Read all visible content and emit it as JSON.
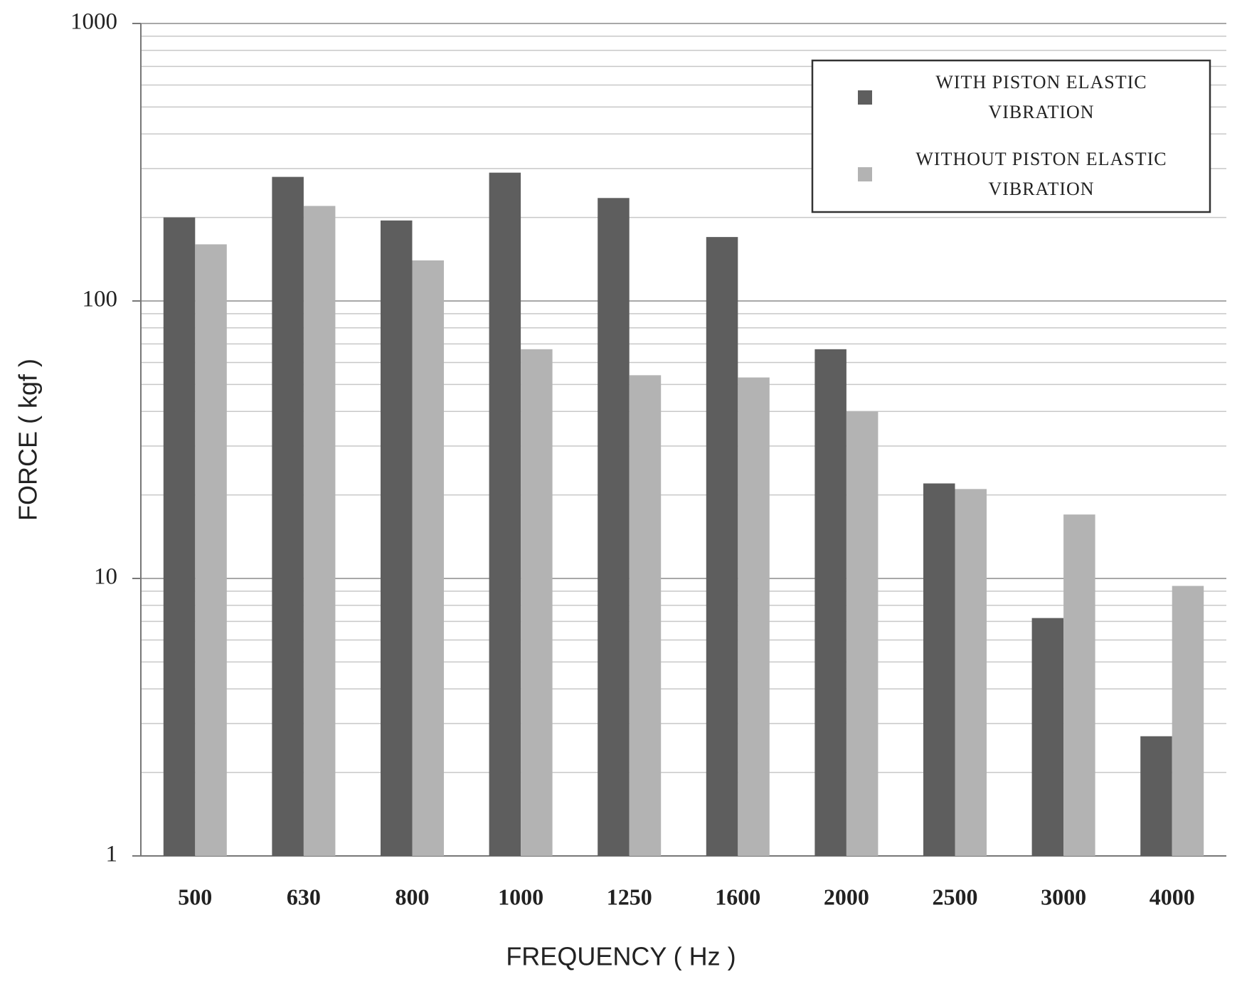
{
  "chart_data": {
    "type": "bar",
    "x_label": "FREQUENCY ( Hz )",
    "y_label": "FORCE ( kgf )",
    "categories": [
      "500",
      "630",
      "800",
      "1000",
      "1250",
      "1600",
      "2000",
      "2500",
      "3000",
      "4000"
    ],
    "series": [
      {
        "name": "WITH PISTON ELASTIC VIBRATION",
        "color": "#5e5e5e",
        "values": [
          200,
          280,
          195,
          290,
          235,
          170,
          67,
          22,
          7.2,
          2.7
        ]
      },
      {
        "name": "WITHOUT PISTON ELASTIC VIBRATION",
        "color": "#b3b3b3",
        "values": [
          160,
          220,
          140,
          67,
          54,
          53,
          40,
          21,
          17,
          9.4
        ]
      }
    ],
    "y_scale": "log",
    "ylim": [
      1,
      1000
    ],
    "yticks": [
      1,
      10,
      100,
      1000
    ],
    "minor_grid": [
      2,
      3,
      4,
      5,
      6,
      7,
      8,
      9,
      20,
      30,
      40,
      50,
      60,
      70,
      80,
      90,
      200,
      300,
      400,
      500,
      600,
      700,
      800,
      900
    ],
    "grid": true,
    "legend": "upper right"
  }
}
